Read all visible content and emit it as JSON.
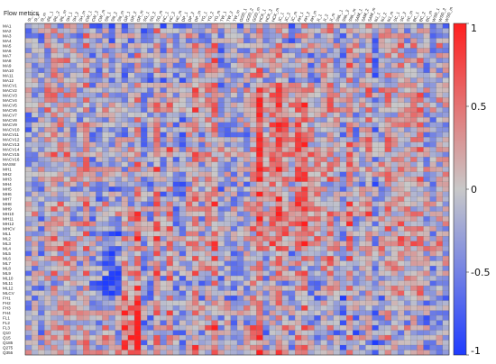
{
  "chart_data": {
    "type": "heatmap",
    "title": "Flow metrics",
    "xlabel": "",
    "ylabel": "",
    "rows": [
      "MA1",
      "MA2",
      "MA3",
      "MA4",
      "MA5",
      "MA6",
      "MA7",
      "MA8",
      "MA9",
      "MA10",
      "MA11",
      "MA12",
      "MACV1",
      "MACV2",
      "MACV3",
      "MACV4",
      "MACV5",
      "MACV6",
      "MACV7",
      "MACV8",
      "MACV9",
      "MACV10",
      "MACV11",
      "MACV12",
      "MACV13",
      "MACV14",
      "MACV15",
      "MACV16",
      "MASW",
      "MH1",
      "MH2",
      "MH3",
      "MH4",
      "MH5",
      "MH6",
      "MH7",
      "MH8",
      "MH9",
      "MH10",
      "MH11",
      "MH12",
      "MHCV",
      "ML1",
      "ML2",
      "ML3",
      "ML4",
      "ML5",
      "ML6",
      "ML7",
      "ML8",
      "ML9",
      "ML10",
      "ML11",
      "ML12",
      "MLCV",
      "FH1",
      "FH2",
      "FH3",
      "FH4",
      "FL1",
      "FL2",
      "FL3",
      "Q10",
      "Q15",
      "Q185",
      "Q275",
      "Q355"
    ],
    "columns": [
      "Sl_1",
      "Sl_2",
      "Sl_m",
      "IRL_1",
      "IRL_2",
      "IRL_m",
      "SH_1",
      "SH_2",
      "SH_m",
      "CW_1",
      "CW_2",
      "CW_m",
      "SN_1",
      "SN_2",
      "SN_m",
      "GR_1",
      "GR_2",
      "GR_m",
      "SG_1",
      "SG_2",
      "SG_m",
      "HC_1",
      "HC_2",
      "HC_m",
      "DP_1",
      "DP_2",
      "DP_m",
      "YG_1",
      "YG_2",
      "YG_m",
      "TW_1",
      "TW_2",
      "TW_m",
      "GGD_1",
      "GGD_2",
      "GGD_m",
      "HCK_1",
      "HCK_2",
      "HCK_m",
      "JC_1",
      "JC_2",
      "JC_m",
      "AH_1",
      "AH_2",
      "AH_m",
      "JI_1",
      "JI_2",
      "JI_m",
      "SNL_1",
      "SNL_2",
      "SNL_m",
      "SAM_1",
      "SAM_2",
      "SAM_m",
      "NJ_1",
      "NJ_2",
      "NJ_m",
      "SC_1",
      "SC_2",
      "SC_m",
      "BC_1",
      "BC_2",
      "BC_m",
      "WSD_1",
      "WSD_2",
      "WSD_m"
    ],
    "value_range": [
      -1,
      1
    ],
    "colorbar": {
      "ticks": [
        1,
        0.5,
        0,
        -0.5,
        -1
      ],
      "tick_labels": [
        "1",
        "0.5",
        "0",
        "-0.5",
        "-1"
      ],
      "colors": {
        "low": "#1f3cff",
        "mid": "#c8c8c8",
        "high": "#ff1f1f"
      }
    },
    "seed": 20231
  }
}
